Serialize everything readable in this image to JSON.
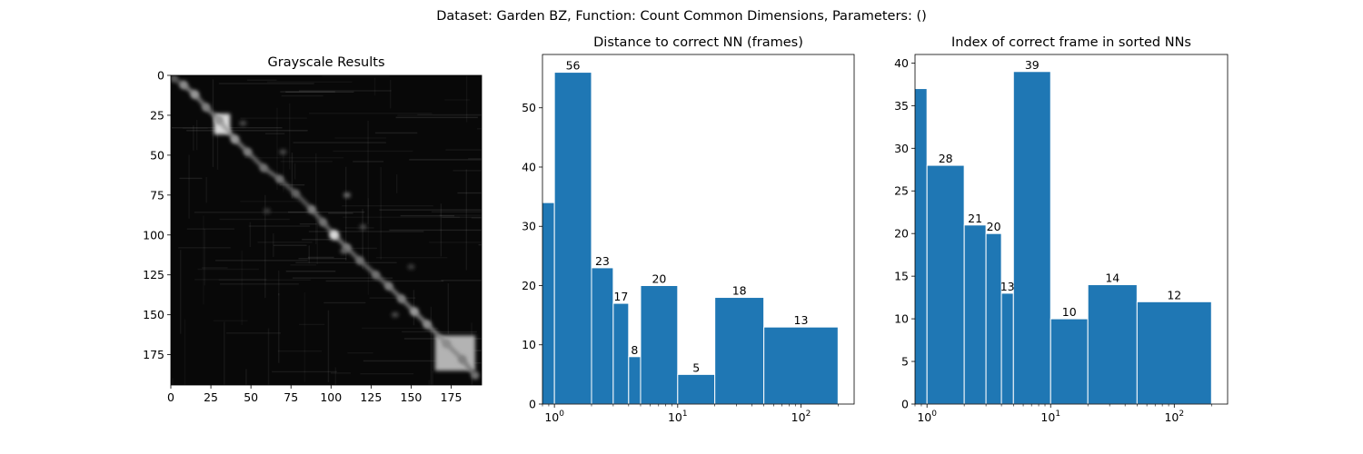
{
  "suptitle": "Dataset:  Garden BZ,  Function:  Count Common Dimensions, Parameters: ()",
  "colors": {
    "bar": "#1f77b4",
    "bar_edge": "#ffffff",
    "label": "#000080",
    "axis": "#000000"
  },
  "chart_data": [
    {
      "type": "heatmap",
      "title": "Grayscale Results",
      "xlim": [
        0,
        194
      ],
      "ylim": [
        194,
        0
      ],
      "xticks": [
        0,
        25,
        50,
        75,
        100,
        125,
        150,
        175
      ],
      "yticks": [
        0,
        25,
        50,
        75,
        100,
        125,
        150,
        175
      ],
      "colormap": "gray",
      "background_level": 0.03,
      "diagonal": [
        {
          "x": 2,
          "y": 2,
          "w": 0.35
        },
        {
          "x": 8,
          "y": 6,
          "w": 0.55
        },
        {
          "x": 15,
          "y": 12,
          "w": 0.6
        },
        {
          "x": 22,
          "y": 20,
          "w": 0.5
        },
        {
          "x": 30,
          "y": 28,
          "w": 0.6
        },
        {
          "x": 40,
          "y": 40,
          "w": 0.6
        },
        {
          "x": 48,
          "y": 48,
          "w": 0.5
        },
        {
          "x": 58,
          "y": 58,
          "w": 0.45
        },
        {
          "x": 68,
          "y": 65,
          "w": 0.45
        },
        {
          "x": 78,
          "y": 74,
          "w": 0.4
        },
        {
          "x": 88,
          "y": 84,
          "w": 0.5
        },
        {
          "x": 95,
          "y": 92,
          "w": 0.45
        },
        {
          "x": 102,
          "y": 100,
          "w": 0.85
        },
        {
          "x": 110,
          "y": 108,
          "w": 0.5
        },
        {
          "x": 118,
          "y": 116,
          "w": 0.45
        },
        {
          "x": 128,
          "y": 125,
          "w": 0.45
        },
        {
          "x": 136,
          "y": 132,
          "w": 0.5
        },
        {
          "x": 144,
          "y": 140,
          "w": 0.5
        },
        {
          "x": 152,
          "y": 148,
          "w": 0.6
        },
        {
          "x": 160,
          "y": 156,
          "w": 0.55
        },
        {
          "x": 172,
          "y": 168,
          "w": 0.55
        },
        {
          "x": 182,
          "y": 178,
          "w": 0.5
        },
        {
          "x": 190,
          "y": 188,
          "w": 0.45
        }
      ],
      "blocks": [
        {
          "x0": 27,
          "x1": 37,
          "y0": 24,
          "y1": 37,
          "level": 0.85
        },
        {
          "x0": 165,
          "x1": 190,
          "y0": 163,
          "y1": 185,
          "level": 0.7
        }
      ],
      "scatter_spots": [
        {
          "x": 110,
          "y": 75,
          "w": 0.45
        },
        {
          "x": 108,
          "y": 110,
          "w": 0.4
        },
        {
          "x": 70,
          "y": 48,
          "w": 0.3
        },
        {
          "x": 45,
          "y": 30,
          "w": 0.3
        },
        {
          "x": 120,
          "y": 95,
          "w": 0.3
        },
        {
          "x": 140,
          "y": 150,
          "w": 0.3
        },
        {
          "x": 60,
          "y": 85,
          "w": 0.25
        },
        {
          "x": 150,
          "y": 120,
          "w": 0.25
        }
      ]
    },
    {
      "type": "bar",
      "title": "Distance to correct NN (frames)",
      "xscale": "log",
      "xlim": [
        0.8,
        270
      ],
      "ylim": [
        0,
        59
      ],
      "yticks": [
        0,
        10,
        20,
        30,
        40,
        50
      ],
      "xticks": [
        1,
        10,
        100
      ],
      "xticklabels": [
        "10",
        "10",
        "10"
      ],
      "xtick_exponents": [
        "0",
        "1",
        "2"
      ],
      "bins": [
        {
          "left": 0.5,
          "right": 1,
          "value": 34,
          "label": ""
        },
        {
          "left": 1,
          "right": 2,
          "value": 56,
          "label": "56"
        },
        {
          "left": 2,
          "right": 3,
          "value": 23,
          "label": "23"
        },
        {
          "left": 3,
          "right": 4,
          "value": 17,
          "label": "17"
        },
        {
          "left": 4,
          "right": 5,
          "value": 8,
          "label": "8"
        },
        {
          "left": 5,
          "right": 10,
          "value": 20,
          "label": "20"
        },
        {
          "left": 10,
          "right": 20,
          "value": 5,
          "label": "5"
        },
        {
          "left": 20,
          "right": 50,
          "value": 18,
          "label": "18"
        },
        {
          "left": 50,
          "right": 200,
          "value": 13,
          "label": "13"
        }
      ]
    },
    {
      "type": "bar",
      "title": "Index of correct frame in sorted NNs",
      "xscale": "log",
      "xlim": [
        0.8,
        270
      ],
      "ylim": [
        0,
        41
      ],
      "yticks": [
        0,
        5,
        10,
        15,
        20,
        25,
        30,
        35,
        40
      ],
      "xticks": [
        1,
        10,
        100
      ],
      "xticklabels": [
        "10",
        "10",
        "10"
      ],
      "xtick_exponents": [
        "0",
        "1",
        "2"
      ],
      "bins": [
        {
          "left": 0.5,
          "right": 1,
          "value": 37,
          "label": ""
        },
        {
          "left": 1,
          "right": 2,
          "value": 28,
          "label": "28"
        },
        {
          "left": 2,
          "right": 3,
          "value": 21,
          "label": "21"
        },
        {
          "left": 3,
          "right": 4,
          "value": 20,
          "label": "20"
        },
        {
          "left": 4,
          "right": 5,
          "value": 13,
          "label": "13"
        },
        {
          "left": 5,
          "right": 10,
          "value": 39,
          "label": "39"
        },
        {
          "left": 10,
          "right": 20,
          "value": 10,
          "label": "10"
        },
        {
          "left": 20,
          "right": 50,
          "value": 14,
          "label": "14"
        },
        {
          "left": 50,
          "right": 200,
          "value": 12,
          "label": "12"
        }
      ]
    }
  ]
}
